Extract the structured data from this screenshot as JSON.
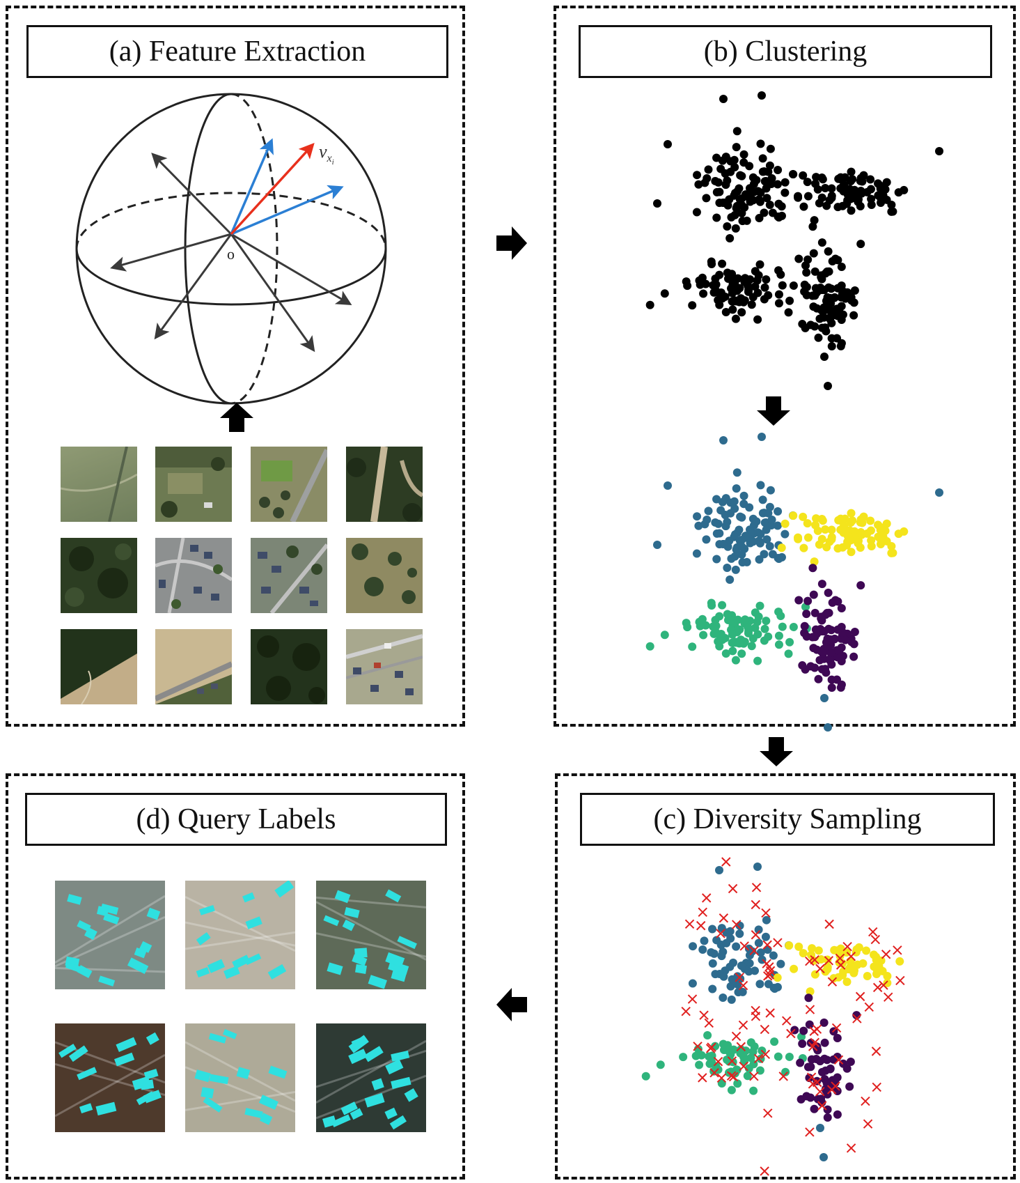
{
  "panels": {
    "a": {
      "title": "(a) Feature Extraction",
      "sphere_origin": "o",
      "vector_label": "v",
      "vector_label_sub": "x",
      "vector_label_subsub": "i"
    },
    "b": {
      "title": "(b) Clustering"
    },
    "c": {
      "title": "(c) Diversity Sampling"
    },
    "d": {
      "title": "(d) Query Labels"
    }
  },
  "colors": {
    "black_points": "#000000",
    "cluster_blue": "#2e6b8e",
    "cluster_yellow": "#f4e41c",
    "cluster_green": "#2fb47c",
    "cluster_purple": "#3e0854",
    "sample_marker": "#e0201f",
    "vector_blue": "#2b7fd4",
    "vector_red": "#e8301c",
    "vector_gray": "#3a3a3a",
    "building_cyan": "#2fe0e0"
  },
  "icons": {
    "flow_arrow": "block-arrow-icon",
    "sample_marker": "x-mark-icon"
  }
}
